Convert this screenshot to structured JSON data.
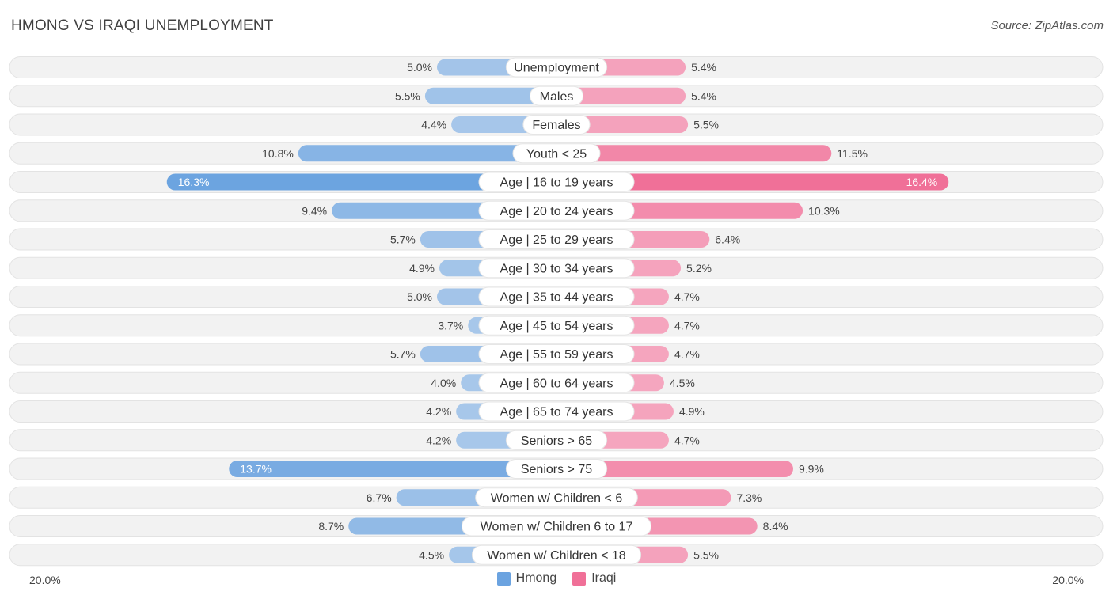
{
  "header": {
    "title": "HMONG VS IRAQI UNEMPLOYMENT",
    "source": "Source: ZipAtlas.com"
  },
  "colors": {
    "hmong": "#6ba3e0",
    "hmong_light": "#a7c7ea",
    "iraqi": "#f07098",
    "iraqi_light": "#f5a8c0",
    "row_bg": "#f0f0f0"
  },
  "chart_data": {
    "type": "bar",
    "orientation": "horizontal-diverging",
    "title": "HMONG VS IRAQI UNEMPLOYMENT",
    "categories": [
      "Unemployment",
      "Males",
      "Females",
      "Youth < 25",
      "Age | 16 to 19 years",
      "Age | 20 to 24 years",
      "Age | 25 to 29 years",
      "Age | 30 to 34 years",
      "Age | 35 to 44 years",
      "Age | 45 to 54 years",
      "Age | 55 to 59 years",
      "Age | 60 to 64 years",
      "Age | 65 to 74 years",
      "Seniors > 65",
      "Seniors > 75",
      "Women w/ Children < 6",
      "Women w/ Children 6 to 17",
      "Women w/ Children < 18"
    ],
    "series": [
      {
        "name": "Hmong",
        "values": [
          5.0,
          5.5,
          4.4,
          10.8,
          16.3,
          9.4,
          5.7,
          4.9,
          5.0,
          3.7,
          5.7,
          4.0,
          4.2,
          4.2,
          13.7,
          6.7,
          8.7,
          4.5
        ],
        "labels": [
          "5.0%",
          "5.5%",
          "4.4%",
          "10.8%",
          "16.3%",
          "9.4%",
          "5.7%",
          "4.9%",
          "5.0%",
          "3.7%",
          "5.7%",
          "4.0%",
          "4.2%",
          "4.2%",
          "13.7%",
          "6.7%",
          "8.7%",
          "4.5%"
        ]
      },
      {
        "name": "Iraqi",
        "values": [
          5.4,
          5.4,
          5.5,
          11.5,
          16.4,
          10.3,
          6.4,
          5.2,
          4.7,
          4.7,
          4.7,
          4.5,
          4.9,
          4.7,
          9.9,
          7.3,
          8.4,
          5.5
        ],
        "labels": [
          "5.4%",
          "5.4%",
          "5.5%",
          "11.5%",
          "16.4%",
          "10.3%",
          "6.4%",
          "5.2%",
          "4.7%",
          "4.7%",
          "4.7%",
          "4.5%",
          "4.9%",
          "4.7%",
          "9.9%",
          "7.3%",
          "8.4%",
          "5.5%"
        ]
      }
    ],
    "xlim": [
      -20,
      20
    ],
    "axis_labels": {
      "left": "20.0%",
      "right": "20.0%"
    },
    "legend_position": "bottom-center"
  }
}
